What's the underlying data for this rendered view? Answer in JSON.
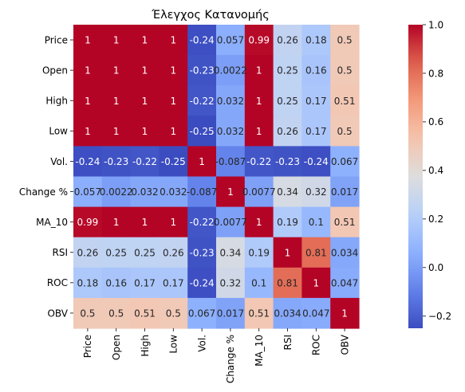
{
  "chart_data": {
    "type": "heatmap",
    "title": "Έλεγχος Κατανομής",
    "xlabel": "",
    "ylabel": "",
    "x_labels": [
      "Price",
      "Open",
      "High",
      "Low",
      "Vol.",
      "Change %",
      "MA_10",
      "RSI",
      "ROC",
      "OBV"
    ],
    "y_labels": [
      "Price",
      "Open",
      "High",
      "Low",
      "Vol.",
      "Change %",
      "MA_10",
      "RSI",
      "ROC",
      "OBV"
    ],
    "values": [
      [
        1,
        1,
        1,
        1,
        -0.24,
        0.057,
        0.99,
        0.26,
        0.18,
        0.5
      ],
      [
        1,
        1,
        1,
        1,
        -0.23,
        0.0022,
        1,
        0.25,
        0.16,
        0.5
      ],
      [
        1,
        1,
        1,
        1,
        -0.22,
        0.032,
        1,
        0.25,
        0.17,
        0.51
      ],
      [
        1,
        1,
        1,
        1,
        -0.25,
        0.032,
        1,
        0.26,
        0.17,
        0.5
      ],
      [
        -0.24,
        -0.23,
        -0.22,
        -0.25,
        1,
        -0.087,
        -0.22,
        -0.23,
        -0.24,
        0.067
      ],
      [
        0.057,
        0.0022,
        0.032,
        0.032,
        -0.087,
        1,
        0.0077,
        0.34,
        0.32,
        0.017
      ],
      [
        0.99,
        1,
        1,
        1,
        -0.22,
        0.0077,
        1,
        0.19,
        0.1,
        0.51
      ],
      [
        0.26,
        0.25,
        0.25,
        0.26,
        -0.23,
        0.34,
        0.19,
        1,
        0.81,
        0.034
      ],
      [
        0.18,
        0.16,
        0.17,
        0.17,
        -0.24,
        0.32,
        0.1,
        0.81,
        1,
        0.047
      ],
      [
        0.5,
        0.5,
        0.51,
        0.5,
        0.067,
        0.017,
        0.51,
        0.034,
        0.047,
        1
      ]
    ],
    "colormap": "coolwarm",
    "vmin": -0.25,
    "vmax": 1.0,
    "colorbar_ticks": [
      -0.2,
      0.0,
      0.2,
      0.4,
      0.6,
      0.8,
      1.0
    ],
    "colorbar_tick_labels": [
      "−0.2",
      "0.0",
      "0.2",
      "0.4",
      "0.6",
      "0.8",
      "1.0"
    ],
    "annotations": true,
    "grid": false,
    "legend": "colorbar-right"
  }
}
